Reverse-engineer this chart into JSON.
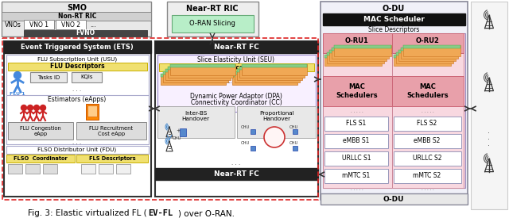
{
  "title_prefix": "Fig. 3: Elastic virtualized FL (",
  "title_code": "EV-FL",
  "title_suffix": ") over O-RAN.",
  "bg_color": "#ffffff",
  "fig_width": 6.4,
  "fig_height": 2.75
}
